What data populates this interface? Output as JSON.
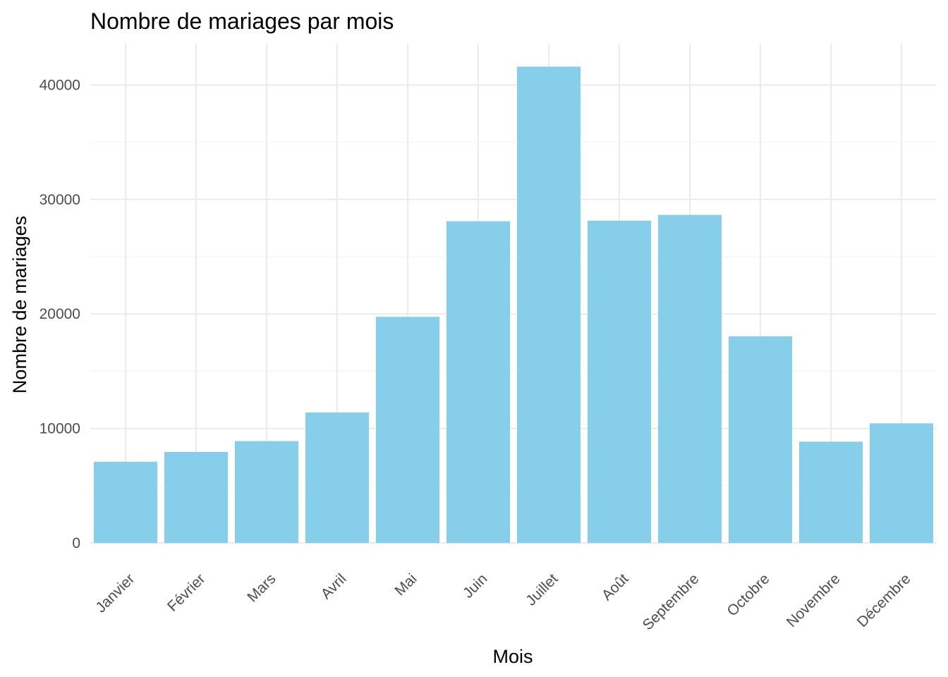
{
  "chart_data": {
    "type": "bar",
    "title": "Nombre de mariages par mois",
    "xlabel": "Mois",
    "ylabel": "Nombre de mariages",
    "categories": [
      "Janvier",
      "Février",
      "Mars",
      "Avril",
      "Mai",
      "Juin",
      "Juillet",
      "Août",
      "Septembre",
      "Octobre",
      "Novembre",
      "Décembre"
    ],
    "values": [
      7100,
      7950,
      8900,
      11400,
      19750,
      28100,
      41600,
      28150,
      28650,
      18050,
      8850,
      10450
    ],
    "ylim": [
      0,
      43600
    ],
    "yticks": [
      0,
      10000,
      20000,
      30000,
      40000
    ],
    "ytick_labels": [
      "0",
      "10000",
      "20000",
      "30000",
      "40000"
    ],
    "grid": true,
    "legend": "none",
    "bar_color": "#87CEEB"
  }
}
